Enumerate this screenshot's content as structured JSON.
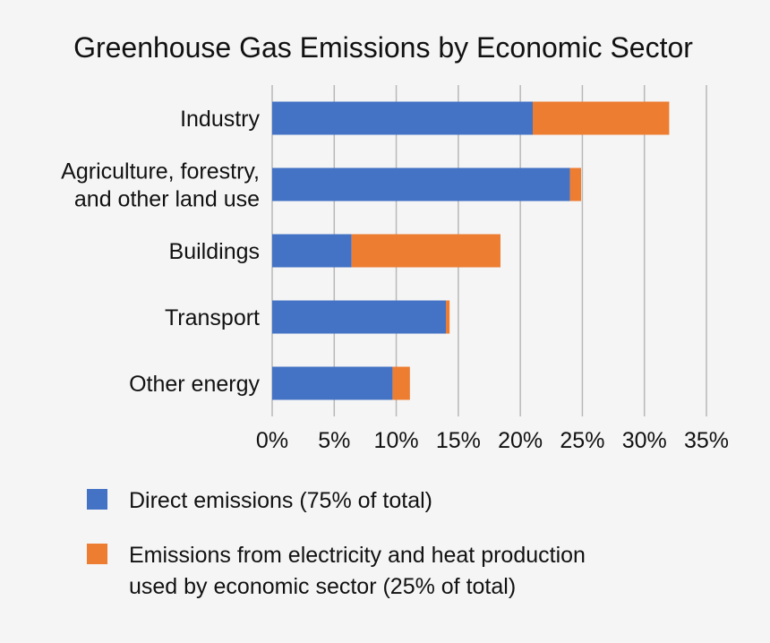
{
  "chart_data": {
    "type": "bar",
    "orientation": "horizontal",
    "stacked": true,
    "title": "Greenhouse Gas Emissions by Economic Sector",
    "categories": [
      [
        "Industry"
      ],
      [
        "Agriculture, forestry,",
        "and other land use"
      ],
      [
        "Buildings"
      ],
      [
        "Transport"
      ],
      [
        "Other energy"
      ]
    ],
    "series": [
      {
        "name": "Direct emissions (75% of total)",
        "color": "#4472c4",
        "values": [
          21.0,
          24.0,
          6.4,
          14.0,
          9.7
        ]
      },
      {
        "name_lines": [
          "Emissions from electricity and heat production",
          "used by economic sector (25% of total)"
        ],
        "color": "#ed7d31",
        "values": [
          11.0,
          0.9,
          12.0,
          0.3,
          1.4
        ]
      }
    ],
    "xlim": [
      0,
      35
    ],
    "xticks": [
      "0%",
      "5%",
      "10%",
      "15%",
      "20%",
      "25%",
      "30%",
      "35%"
    ],
    "grid": "vertical",
    "legend_position": "bottom"
  }
}
